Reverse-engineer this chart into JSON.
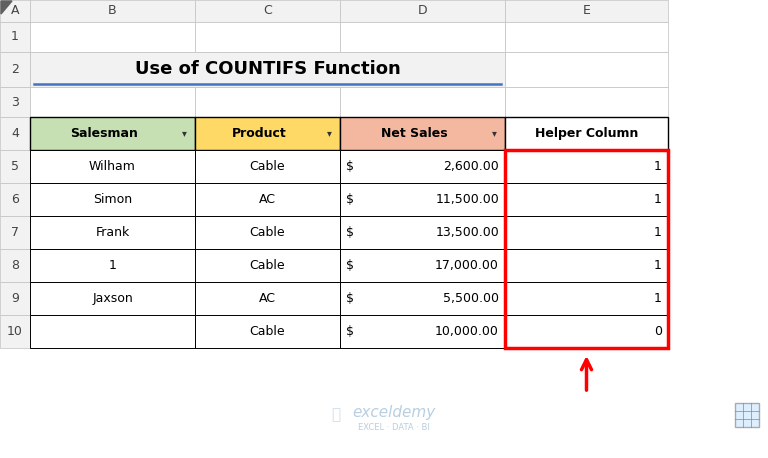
{
  "title": "Use of COUNTIFS Function",
  "col_letters": [
    "A",
    "B",
    "C",
    "D",
    "E"
  ],
  "row_numbers": [
    "1",
    "2",
    "3",
    "4",
    "5",
    "6",
    "7",
    "8",
    "9",
    "10"
  ],
  "salesman": [
    "Wilham",
    "Simon",
    "Frank",
    "1",
    "Jaxson",
    ""
  ],
  "product": [
    "Cable",
    "AC",
    "Cable",
    "Cable",
    "AC",
    "Cable"
  ],
  "net_sales_dollar": [
    "$",
    "$",
    "$",
    "$",
    "$",
    "$"
  ],
  "net_sales_num": [
    "2,600.00",
    "11,500.00",
    "13,500.00",
    "17,000.00",
    "5,500.00",
    "10,000.00"
  ],
  "helper_col": [
    "1",
    "1",
    "1",
    "1",
    "1",
    "0"
  ],
  "col_headers": [
    "Salesman",
    "Product",
    "Net Sales",
    "Helper Column"
  ],
  "header_bg_salesman": "#c6e0b4",
  "header_bg_product": "#ffd966",
  "header_bg_netsales": "#f4b8a0",
  "header_bg_helper": "#ffffff",
  "title_bg": "#f2f2f2",
  "col_header_bg": "#f2f2f2",
  "row_header_bg": "#f2f2f2",
  "cell_bg": "#ffffff",
  "red_border": "#ff0000",
  "title_underline": "#4472c4",
  "watermark_color": "#b8cfe0",
  "grid_light": "#c0c0c0",
  "grid_dark": "#000000"
}
